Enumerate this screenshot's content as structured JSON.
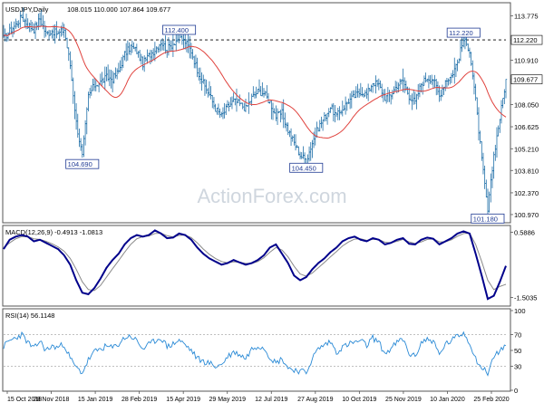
{
  "header": {
    "title": "USDJPY,Daily",
    "ohlc": "108.015 110.000 107.864 109.677"
  },
  "watermark": "ActionForex.com",
  "colors": {
    "background": "#ffffff",
    "border": "#555555",
    "candle": "#1f6fa8",
    "ma": "#e0433e",
    "macd_main": "#00008b",
    "macd_signal": "#8a8a8a",
    "rsi": "#2a8ad6",
    "hline": "#000000",
    "tag_bg": "#ffffff",
    "tag_border": "#1f3a93",
    "price_tag_bg": "#ffffff",
    "watermark": "#cfd6de"
  },
  "chart_data": [
    {
      "type": "line",
      "panel": "price",
      "title": "USDJPY,Daily",
      "x_ticks": [
        "15 Oct 2018",
        "28 Nov 2018",
        "15 Jan 2019",
        "28 Feb 2019",
        "15 Apr 2019",
        "29 May 2019",
        "12 Jul 2019",
        "27 Aug 2019",
        "10 Oct 2019",
        "25 Nov 2019",
        "10 Jan 2020",
        "25 Feb 2020"
      ],
      "y_ticks": [
        "113.775",
        "112.220",
        "110.910",
        "109.677",
        "108.050",
        "106.625",
        "105.210",
        "103.810",
        "102.370",
        "100.970"
      ],
      "ylim": [
        100.5,
        114.5
      ],
      "last_price": 109.677,
      "horizontal_line": 112.22,
      "ma_visible": true,
      "series": [
        {
          "values": [
            112.3,
            112.8,
            113.2,
            113.7,
            113.2,
            112.9,
            113.6,
            112.6,
            112.8,
            112.6,
            112.9,
            110.6,
            106.9,
            104.7,
            108.6,
            109.3,
            109.5,
            109.8,
            109.7,
            110.2,
            111.3,
            111.8,
            111.5,
            110.7,
            111.2,
            111.6,
            112.1,
            111.6,
            112.0,
            112.4,
            112.1,
            111.5,
            110.3,
            109.4,
            108.7,
            107.8,
            107.3,
            107.9,
            108.3,
            108.1,
            107.8,
            108.5,
            108.9,
            108.8,
            108.2,
            107.3,
            107.5,
            106.4,
            105.6,
            104.8,
            104.45,
            105.6,
            106.6,
            107.2,
            107.9,
            107.3,
            107.8,
            108.3,
            108.6,
            108.9,
            108.7,
            109.5,
            109.3,
            108.5,
            108.7,
            109.3,
            109.6,
            108.6,
            108.2,
            109.4,
            109.8,
            109.7,
            108.6,
            109.6,
            109.9,
            110.8,
            112.22,
            111.6,
            108.3,
            104.5,
            101.18,
            104.8,
            107.2,
            109.677
          ]
        }
      ],
      "annotations": [
        "112.400",
        "104.690",
        "104.450",
        "112.220",
        "101.180"
      ]
    },
    {
      "type": "line",
      "panel": "macd",
      "title": "MACD(12,26,9) -0.4913 -1.0813",
      "y_ticks": [
        "0.5886",
        "-1.5035"
      ],
      "ylim": [
        -1.75,
        0.75
      ],
      "series": [
        {
          "values": [
            0.05,
            0.35,
            0.45,
            0.5,
            0.45,
            0.3,
            0.35,
            0.25,
            0.15,
            0.05,
            -0.15,
            -0.45,
            -0.95,
            -1.35,
            -1.4,
            -1.2,
            -0.9,
            -0.55,
            -0.3,
            -0.1,
            0.2,
            0.4,
            0.5,
            0.45,
            0.5,
            0.65,
            0.55,
            0.4,
            0.42,
            0.55,
            0.5,
            0.35,
            0.1,
            -0.1,
            -0.25,
            -0.35,
            -0.45,
            -0.4,
            -0.3,
            -0.38,
            -0.45,
            -0.4,
            -0.3,
            -0.15,
            0.1,
            0.2,
            -0.1,
            -0.4,
            -0.8,
            -0.95,
            -0.85,
            -0.6,
            -0.4,
            -0.25,
            -0.05,
            0.1,
            0.3,
            0.4,
            0.45,
            0.35,
            0.3,
            0.4,
            0.35,
            0.2,
            0.25,
            0.35,
            0.4,
            0.22,
            0.2,
            0.35,
            0.42,
            0.38,
            0.2,
            0.3,
            0.4,
            0.55,
            0.62,
            0.55,
            -0.1,
            -0.8,
            -1.55,
            -1.45,
            -1.0,
            -0.49
          ]
        },
        {
          "values": [
            0.1,
            0.25,
            0.38,
            0.45,
            0.45,
            0.38,
            0.36,
            0.3,
            0.22,
            0.12,
            -0.02,
            -0.25,
            -0.6,
            -1.0,
            -1.25,
            -1.28,
            -1.12,
            -0.85,
            -0.58,
            -0.32,
            -0.05,
            0.2,
            0.38,
            0.45,
            0.47,
            0.55,
            0.56,
            0.48,
            0.44,
            0.49,
            0.5,
            0.42,
            0.25,
            0.05,
            -0.12,
            -0.25,
            -0.35,
            -0.39,
            -0.36,
            -0.37,
            -0.41,
            -0.41,
            -0.35,
            -0.23,
            -0.05,
            0.1,
            0.02,
            -0.2,
            -0.5,
            -0.75,
            -0.82,
            -0.72,
            -0.55,
            -0.38,
            -0.2,
            -0.03,
            0.15,
            0.28,
            0.37,
            0.38,
            0.33,
            0.36,
            0.36,
            0.27,
            0.25,
            0.3,
            0.36,
            0.28,
            0.23,
            0.28,
            0.36,
            0.38,
            0.28,
            0.28,
            0.35,
            0.46,
            0.55,
            0.56,
            0.2,
            -0.35,
            -0.95,
            -1.25,
            -1.15,
            -1.0813
          ]
        }
      ]
    },
    {
      "type": "line",
      "panel": "rsi",
      "title": "RSI(14) 56.1148",
      "y_ticks": [
        "100",
        "70",
        "50",
        "30",
        "0"
      ],
      "ylim": [
        0,
        100
      ],
      "series": [
        {
          "values": [
            55,
            62,
            66,
            70,
            60,
            52,
            62,
            50,
            55,
            54,
            58,
            40,
            28,
            22,
            38,
            48,
            52,
            55,
            53,
            58,
            66,
            68,
            62,
            52,
            57,
            62,
            66,
            55,
            58,
            63,
            57,
            50,
            40,
            36,
            34,
            30,
            32,
            42,
            48,
            45,
            40,
            52,
            56,
            54,
            42,
            34,
            40,
            28,
            26,
            24,
            22,
            40,
            52,
            57,
            61,
            48,
            54,
            58,
            60,
            62,
            56,
            66,
            60,
            46,
            52,
            60,
            64,
            46,
            42,
            60,
            64,
            62,
            44,
            58,
            62,
            68,
            72,
            60,
            40,
            28,
            22,
            42,
            50,
            56.1148
          ]
        }
      ]
    }
  ]
}
